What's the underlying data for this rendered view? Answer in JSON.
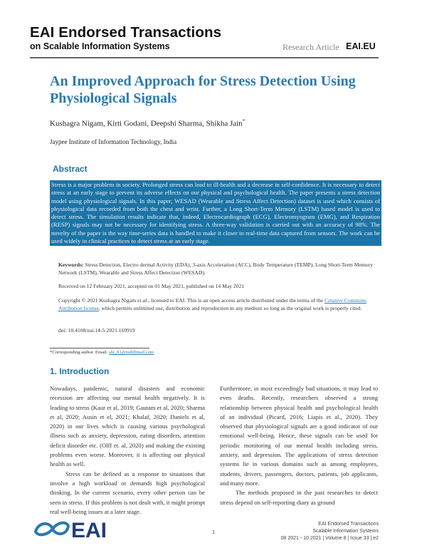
{
  "header": {
    "journal": "EAI Endorsed Transactions",
    "journal_sub": "on Scalable Information Systems",
    "article_type": "Research Article",
    "site": "EAI.EU"
  },
  "title": "An Improved Approach for Stress Detection Using Physiological Signals",
  "authors": "Kushagra Nigam, Kirti Godani, Deepshi Sharma, Shikha Jain",
  "author_mark": "*",
  "affiliation": "Jaypee Institute of Information Technology, India",
  "abstract": {
    "heading": "Abstract",
    "text": "Stress is a major problem in society. Prolonged stress can lead to ill-health and a decrease in self-confidence. It is necessary to detect stress at an early stage to prevent its adverse effects on our physical and psychological health. The paper presents a stress detection model using physiological signals. In this paper, WESAD (Wearable and Stress Affect Detection) dataset is used which consists of physiological data recorded from both the chest and wrist. Further, a Long Short-Term Memory (LSTM) based model is used to detect stress. The simulation results indicate that, indeed, Electrocardiograph (ECG), Electromyogram (EMG), and Respiration (RESP) signals may not be necessary for identifying stress. A three-way validation is carried out with an accuracy of 98%. The novelty of the paper is the way time-series data is handled to make it closer to real-time data captured from sensors. The work can be used widely in clinical practices to detect stress at an early stage."
  },
  "keywords": {
    "label": "Keywords:",
    "text": "Stress Detection, Electro dermal Activity (EDA), 3-axis Acceleration (ACC), Body Temperature (TEMP), Long Short-Term Memory Network (LSTM), Wearable and Stress Affect Detection (WESAD)."
  },
  "received": "Received on 12 February 2021, accepted on 01 May 2021, published on 14 May 2021",
  "copyright": {
    "pre": "Copyright © 2021 Kushagra Nigam ",
    "etal": "et al.",
    "mid": ", licensed to EAI. This is an open access article distributed under the terms of the ",
    "link": "Creative Commons Attribution license",
    "post": ", which permits unlimited use, distribution and reproduction in any medium so long as the original work is properly cited."
  },
  "doi": "doi: 10.4108/eai.14-5-2021.169919",
  "footnote": {
    "text": "*Corresponding author. Email: ",
    "email": "shi_81@rediffmail.com"
  },
  "intro": {
    "heading": "1. Introduction",
    "left": [
      "Nowadays, pandemic, natural disasters and economic recession are affecting our mental health negatively. It is leading to stress (Kaur et al, 2019; Gautam et al, 2020; Sharma et al, 2020; Ausin et el, 2021; Khalaf, 2020; Daniels et al, 2020) in our lives which is causing various psychological illness such as anxiety, depression, eating disorders, attention deficit disorder etc. (Olff et. al, 2020) and making the existing problems even worse. Moreover, it is affecting our physical health as well.",
      "Stress can be defined as a response to situations that involve a high workload or demands high psychological thinking. In the current scenario, every other person can be seen in stress. If this problem is not dealt with, it might prompt real well-being issues at a later stage."
    ],
    "right": [
      "Furthermore, in most exceedingly bad situations, it may lead to even deaths. Recently, researchers observed a strong relationship between physical health and psychological health of an individual (Picard, 2016; Liapis et al., 2020). They observed that physiological signals are a good indicator of our emotional well-being. Hence, these signals can be used for periodic monitoring of our mental health including stress, anxiety, and depression. The applications of stress detection systems lie in various domains such as among employees, students, drivers, passengers, doctors, patients, job applicants, and many more.",
      "The methods proposed in the past researches to detect stress depend on self-reporting diary as ground"
    ]
  },
  "footer": {
    "logo_text": "EAI",
    "line1": "EAI Endorsed Transactions",
    "line2": "Scalable Information Systems",
    "line3": "08 2021 - 10 2021 | Volume 8 | Issue 33 | e2",
    "page": "1"
  },
  "colors": {
    "accent": "#1f73a6",
    "abstract_bg": "#1c74a6"
  }
}
